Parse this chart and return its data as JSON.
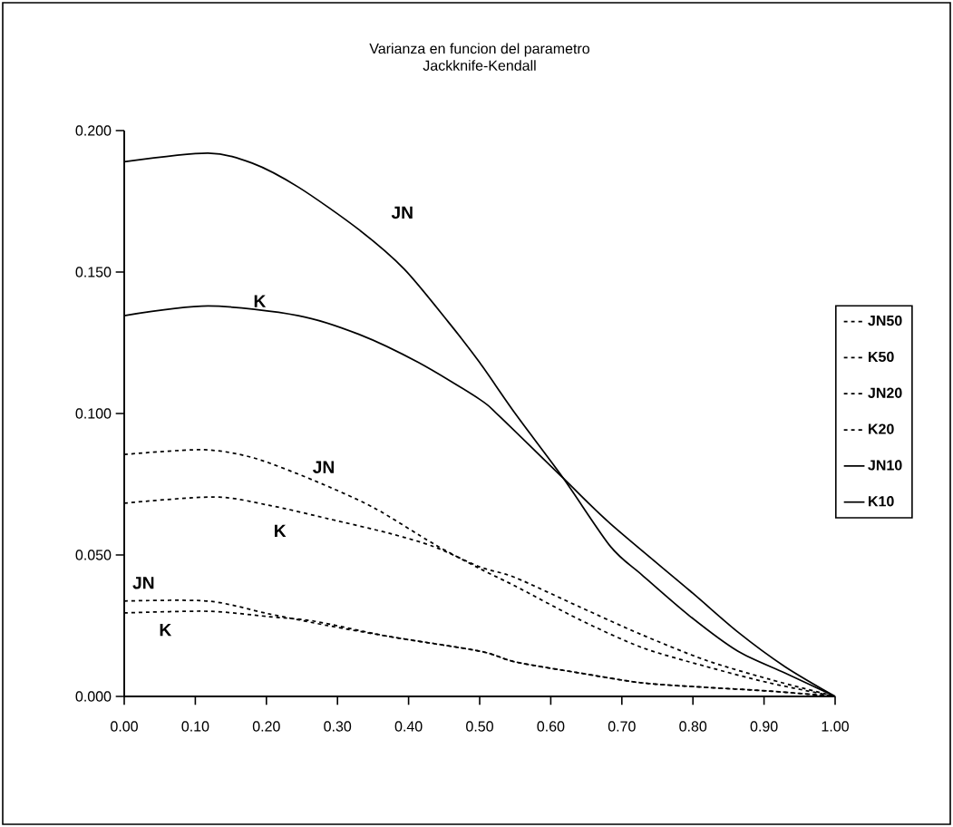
{
  "chart_data": {
    "type": "line",
    "title": "Varianza en funcion del parametro",
    "subtitle": "Jackknife-Kendall",
    "xlim": [
      0,
      1
    ],
    "ylim": [
      0,
      0.2
    ],
    "xticks": [
      {
        "value": 0,
        "label": "0.00"
      },
      {
        "value": 0.1,
        "label": "0.10"
      },
      {
        "value": 0.2,
        "label": "0.20"
      },
      {
        "value": 0.3,
        "label": "0.30"
      },
      {
        "value": 0.4,
        "label": "0.40"
      },
      {
        "value": 0.5,
        "label": "0.50"
      },
      {
        "value": 0.6,
        "label": "0.60"
      },
      {
        "value": 0.7,
        "label": "0.70"
      },
      {
        "value": 0.8,
        "label": "0.80"
      },
      {
        "value": 0.9,
        "label": "0.90"
      },
      {
        "value": 1,
        "label": "1.00"
      }
    ],
    "yticks": [
      {
        "value": 0,
        "label": "0.000"
      },
      {
        "value": 0.05,
        "label": "0.050"
      },
      {
        "value": 0.1,
        "label": "0.100"
      },
      {
        "value": 0.15,
        "label": "0.150"
      },
      {
        "value": 0.2,
        "label": "0.200"
      }
    ],
    "legend": "right",
    "marker": "none",
    "series": [
      {
        "name": "JN50",
        "color": "#000000",
        "line_style": "dashed",
        "x": [
          0,
          0.118,
          0.203,
          0.287,
          0.372,
          0.5,
          0.55,
          0.64,
          0.728,
          0.818,
          0.907,
          1
        ],
        "values": [
          0.0337,
          0.0337,
          0.0292,
          0.025,
          0.0212,
          0.016,
          0.0122,
          0.0083,
          0.0048,
          0.0032,
          0.0019,
          0
        ]
      },
      {
        "name": "K50",
        "color": "#000000",
        "line_style": "dashed",
        "x": [
          0,
          0.118,
          0.203,
          0.267,
          0.372,
          0.5,
          0.55,
          0.64,
          0.728,
          0.818,
          0.907,
          1
        ],
        "values": [
          0.0295,
          0.0301,
          0.0282,
          0.0266,
          0.0212,
          0.016,
          0.0122,
          0.0083,
          0.0048,
          0.0032,
          0.0019,
          0
        ]
      },
      {
        "name": "JN20",
        "color": "#000000",
        "line_style": "dashed",
        "x": [
          0,
          0.11,
          0.182,
          0.267,
          0.351,
          0.436,
          0.5,
          0.55,
          0.64,
          0.728,
          0.818,
          0.907,
          1
        ],
        "values": [
          0.0855,
          0.0872,
          0.0843,
          0.0763,
          0.0667,
          0.0538,
          0.0452,
          0.039,
          0.0272,
          0.0173,
          0.0106,
          0.0048,
          0
        ]
      },
      {
        "name": "K20",
        "color": "#000000",
        "line_style": "dashed",
        "x": [
          0,
          0.127,
          0.203,
          0.287,
          0.372,
          0.436,
          0.5,
          0.55,
          0.64,
          0.728,
          0.818,
          0.907,
          1
        ],
        "values": [
          0.0683,
          0.0705,
          0.0676,
          0.0628,
          0.0577,
          0.0529,
          0.0458,
          0.042,
          0.0317,
          0.0218,
          0.0128,
          0.0061,
          0
        ]
      },
      {
        "name": "JN10",
        "color": "#000000",
        "line_style": "solid",
        "x": [
          0,
          0.118,
          0.18,
          0.245,
          0.33,
          0.394,
          0.457,
          0.5,
          0.55,
          0.618,
          0.684,
          0.728,
          0.795,
          0.863,
          0.929,
          1
        ],
        "values": [
          0.189,
          0.192,
          0.1885,
          0.18,
          0.165,
          0.151,
          0.132,
          0.118,
          0.1,
          0.077,
          0.053,
          0.043,
          0.0285,
          0.016,
          0.0083,
          0
        ]
      },
      {
        "name": "K10",
        "color": "#000000",
        "line_style": "solid",
        "x": [
          0,
          0.118,
          0.245,
          0.33,
          0.414,
          0.5,
          0.528,
          0.618,
          0.684,
          0.795,
          0.863,
          0.929,
          1
        ],
        "values": [
          0.1346,
          0.138,
          0.1346,
          0.128,
          0.118,
          0.105,
          0.099,
          0.077,
          0.061,
          0.0375,
          0.0228,
          0.0106,
          0
        ]
      }
    ],
    "annotations": [
      "JN",
      "K",
      "JN",
      "K",
      "JN",
      "K"
    ]
  }
}
